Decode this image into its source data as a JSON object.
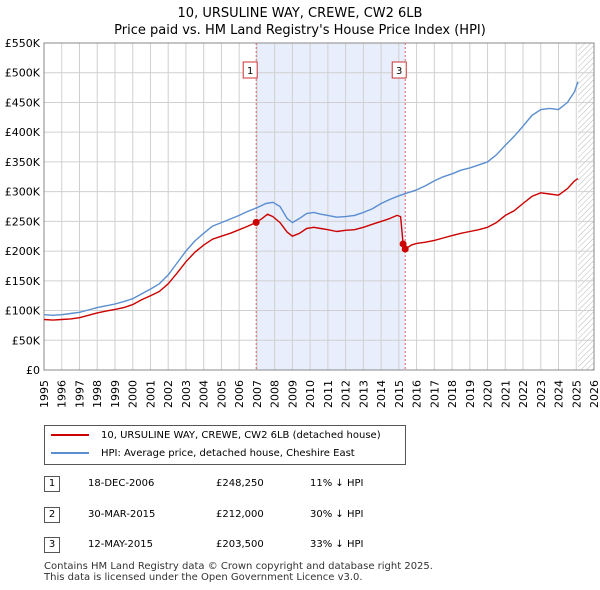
{
  "title_line1": "10, URSULINE WAY, CREWE, CW2 6LB",
  "title_line2": "Price paid vs. HM Land Registry's House Price Index (HPI)",
  "colors": {
    "property": "#cc0000",
    "hpi": "#5a8ed0",
    "shade": "#e8eefb",
    "grid": "#d0d0d0"
  },
  "chart_data": {
    "type": "line",
    "title": "10, URSULINE WAY, CREWE, CW2 6LB — Price paid vs. HM Land Registry's House Price Index (HPI)",
    "xlabel": "",
    "ylabel": "",
    "xlim": [
      1995,
      2026
    ],
    "ylim": [
      0,
      550000
    ],
    "x_ticks": [
      1995,
      1996,
      1997,
      1998,
      1999,
      2000,
      2001,
      2002,
      2003,
      2004,
      2005,
      2006,
      2007,
      2008,
      2009,
      2010,
      2011,
      2012,
      2013,
      2014,
      2015,
      2016,
      2017,
      2018,
      2019,
      2020,
      2021,
      2022,
      2023,
      2024,
      2025,
      2026
    ],
    "y_ticks": [
      0,
      50000,
      100000,
      150000,
      200000,
      250000,
      300000,
      350000,
      400000,
      450000,
      500000,
      550000
    ],
    "y_tick_labels": [
      "£0",
      "£50K",
      "£100K",
      "£150K",
      "£200K",
      "£250K",
      "£300K",
      "£350K",
      "£400K",
      "£450K",
      "£500K",
      "£550K"
    ],
    "series": [
      {
        "name": "10, URSULINE WAY, CREWE, CW2 6LB (detached house)",
        "color": "#cc0000",
        "points": [
          [
            1995.0,
            85000
          ],
          [
            1995.5,
            84000
          ],
          [
            1996.0,
            85000
          ],
          [
            1996.5,
            86000
          ],
          [
            1997.0,
            88000
          ],
          [
            1997.5,
            92000
          ],
          [
            1998.0,
            96000
          ],
          [
            1998.5,
            99000
          ],
          [
            1999.0,
            102000
          ],
          [
            1999.5,
            105000
          ],
          [
            2000.0,
            110000
          ],
          [
            2000.5,
            118000
          ],
          [
            2001.0,
            125000
          ],
          [
            2001.5,
            132000
          ],
          [
            2002.0,
            145000
          ],
          [
            2002.5,
            163000
          ],
          [
            2003.0,
            182000
          ],
          [
            2003.5,
            198000
          ],
          [
            2004.0,
            210000
          ],
          [
            2004.5,
            220000
          ],
          [
            2005.0,
            225000
          ],
          [
            2005.5,
            230000
          ],
          [
            2006.0,
            236000
          ],
          [
            2006.5,
            242000
          ],
          [
            2006.96,
            248250
          ],
          [
            2007.3,
            255000
          ],
          [
            2007.6,
            262000
          ],
          [
            2007.9,
            258000
          ],
          [
            2008.3,
            248000
          ],
          [
            2008.7,
            232000
          ],
          [
            2009.0,
            225000
          ],
          [
            2009.4,
            230000
          ],
          [
            2009.8,
            238000
          ],
          [
            2010.2,
            240000
          ],
          [
            2010.6,
            238000
          ],
          [
            2011.0,
            236000
          ],
          [
            2011.5,
            233000
          ],
          [
            2012.0,
            235000
          ],
          [
            2012.5,
            236000
          ],
          [
            2013.0,
            240000
          ],
          [
            2013.5,
            245000
          ],
          [
            2014.0,
            250000
          ],
          [
            2014.5,
            255000
          ],
          [
            2014.9,
            260000
          ],
          [
            2015.1,
            258000
          ],
          [
            2015.24,
            212000
          ],
          [
            2015.36,
            203500
          ],
          [
            2015.7,
            210000
          ],
          [
            2016.0,
            213000
          ],
          [
            2016.5,
            215000
          ],
          [
            2017.0,
            218000
          ],
          [
            2017.5,
            222000
          ],
          [
            2018.0,
            226000
          ],
          [
            2018.5,
            230000
          ],
          [
            2019.0,
            233000
          ],
          [
            2019.5,
            236000
          ],
          [
            2020.0,
            240000
          ],
          [
            2020.5,
            248000
          ],
          [
            2021.0,
            260000
          ],
          [
            2021.5,
            268000
          ],
          [
            2022.0,
            280000
          ],
          [
            2022.5,
            292000
          ],
          [
            2023.0,
            298000
          ],
          [
            2023.5,
            296000
          ],
          [
            2024.0,
            294000
          ],
          [
            2024.5,
            305000
          ],
          [
            2024.9,
            318000
          ],
          [
            2025.1,
            322000
          ]
        ]
      },
      {
        "name": "HPI: Average price, detached house, Cheshire East",
        "color": "#5a8ed0",
        "points": [
          [
            1995.0,
            93000
          ],
          [
            1995.5,
            92000
          ],
          [
            1996.0,
            93000
          ],
          [
            1996.5,
            95000
          ],
          [
            1997.0,
            97000
          ],
          [
            1997.5,
            101000
          ],
          [
            1998.0,
            105000
          ],
          [
            1998.5,
            108000
          ],
          [
            1999.0,
            111000
          ],
          [
            1999.5,
            115000
          ],
          [
            2000.0,
            120000
          ],
          [
            2000.5,
            128000
          ],
          [
            2001.0,
            136000
          ],
          [
            2001.5,
            145000
          ],
          [
            2002.0,
            160000
          ],
          [
            2002.5,
            180000
          ],
          [
            2003.0,
            200000
          ],
          [
            2003.5,
            217000
          ],
          [
            2004.0,
            230000
          ],
          [
            2004.5,
            242000
          ],
          [
            2005.0,
            248000
          ],
          [
            2005.5,
            254000
          ],
          [
            2006.0,
            260000
          ],
          [
            2006.5,
            267000
          ],
          [
            2007.0,
            273000
          ],
          [
            2007.5,
            280000
          ],
          [
            2007.9,
            282000
          ],
          [
            2008.3,
            275000
          ],
          [
            2008.7,
            255000
          ],
          [
            2009.0,
            248000
          ],
          [
            2009.4,
            255000
          ],
          [
            2009.8,
            263000
          ],
          [
            2010.2,
            265000
          ],
          [
            2010.6,
            262000
          ],
          [
            2011.0,
            260000
          ],
          [
            2011.5,
            257000
          ],
          [
            2012.0,
            258000
          ],
          [
            2012.5,
            260000
          ],
          [
            2013.0,
            265000
          ],
          [
            2013.5,
            271000
          ],
          [
            2014.0,
            280000
          ],
          [
            2014.5,
            287000
          ],
          [
            2015.0,
            293000
          ],
          [
            2015.5,
            298000
          ],
          [
            2016.0,
            303000
          ],
          [
            2016.5,
            310000
          ],
          [
            2017.0,
            318000
          ],
          [
            2017.5,
            325000
          ],
          [
            2018.0,
            330000
          ],
          [
            2018.5,
            336000
          ],
          [
            2019.0,
            340000
          ],
          [
            2019.5,
            345000
          ],
          [
            2020.0,
            350000
          ],
          [
            2020.5,
            362000
          ],
          [
            2021.0,
            378000
          ],
          [
            2021.5,
            393000
          ],
          [
            2022.0,
            410000
          ],
          [
            2022.5,
            428000
          ],
          [
            2023.0,
            438000
          ],
          [
            2023.5,
            440000
          ],
          [
            2024.0,
            438000
          ],
          [
            2024.5,
            450000
          ],
          [
            2024.9,
            468000
          ],
          [
            2025.1,
            485000
          ]
        ]
      }
    ],
    "sales": [
      {
        "num": "1",
        "x": 2006.96,
        "y": 248250
      },
      {
        "num": "2",
        "x": 2015.24,
        "y": 212000
      },
      {
        "num": "3",
        "x": 2015.36,
        "y": 203500
      }
    ],
    "shaded_range": [
      2006.96,
      2015.36
    ],
    "data_end": 2025.1
  },
  "legend": {
    "property": "10, URSULINE WAY, CREWE, CW2 6LB (detached house)",
    "hpi": "HPI: Average price, detached house, Cheshire East"
  },
  "transactions": [
    {
      "num": "1",
      "date": "18-DEC-2006",
      "price": "£248,250",
      "hpi": "11% ↓ HPI"
    },
    {
      "num": "2",
      "date": "30-MAR-2015",
      "price": "£212,000",
      "hpi": "30% ↓ HPI"
    },
    {
      "num": "3",
      "date": "12-MAY-2015",
      "price": "£203,500",
      "hpi": "33% ↓ HPI"
    }
  ],
  "footer_line1": "Contains HM Land Registry data © Crown copyright and database right 2025.",
  "footer_line2": "This data is licensed under the Open Government Licence v3.0."
}
